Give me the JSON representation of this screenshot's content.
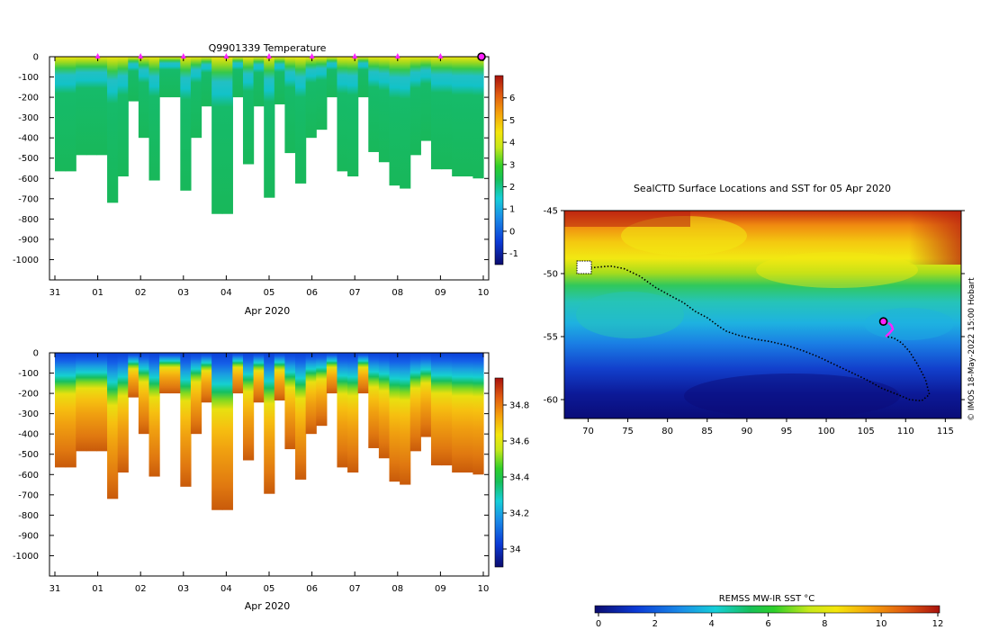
{
  "chart_data": [
    {
      "type": "heatmap",
      "title": "Q9901339  Temperature",
      "xlabel": "Apr 2020",
      "ylabel": "",
      "x_ticks": [
        "31",
        "01",
        "02",
        "03",
        "04",
        "05",
        "06",
        "07",
        "08",
        "09",
        "10"
      ],
      "x_range_days": [
        0,
        10
      ],
      "y_ticks": [
        "0",
        "-100",
        "-200",
        "-300",
        "-400",
        "-500",
        "-600",
        "-700",
        "-800",
        "-900",
        "-1000"
      ],
      "ylim": [
        -1100,
        0
      ],
      "colorbar": {
        "range": [
          -1.5,
          7
        ],
        "ticks": [
          "-1",
          "0",
          "1",
          "2",
          "3",
          "4",
          "5",
          "6"
        ]
      },
      "profile_depths_m": [
        565,
        565,
        485,
        485,
        485,
        720,
        590,
        220,
        400,
        610,
        200,
        200,
        660,
        400,
        245,
        775,
        775,
        200,
        530,
        245,
        695,
        235,
        475,
        625,
        400,
        360,
        200,
        565,
        590,
        200,
        470,
        520,
        635,
        650,
        485,
        415,
        555,
        555,
        590,
        590,
        600
      ],
      "surface_markers_day": [
        1,
        2,
        3,
        4,
        5,
        6,
        7,
        8,
        9
      ],
      "last_position_day": 10
    },
    {
      "type": "heatmap",
      "title": "",
      "xlabel": "Apr 2020",
      "ylabel": "",
      "x_ticks": [
        "31",
        "01",
        "02",
        "03",
        "04",
        "05",
        "06",
        "07",
        "08",
        "09",
        "10"
      ],
      "x_range_days": [
        0,
        10
      ],
      "y_ticks": [
        "0",
        "-100",
        "-200",
        "-300",
        "-400",
        "-500",
        "-600",
        "-700",
        "-800",
        "-900",
        "-1000"
      ],
      "ylim": [
        -1100,
        0
      ],
      "colorbar": {
        "range": [
          33.9,
          34.95
        ],
        "ticks": [
          "34",
          "34.2",
          "34.4",
          "34.6",
          "34.8"
        ]
      }
    },
    {
      "type": "scatter",
      "title": "SealCTD Surface Locations and SST for 05 Apr 2020",
      "xlabel": "",
      "ylabel": "",
      "x_ticks": [
        "70",
        "75",
        "80",
        "85",
        "90",
        "95",
        "100",
        "105",
        "110",
        "115"
      ],
      "xlim": [
        67,
        117
      ],
      "y_ticks": [
        "-45",
        "-50",
        "-55",
        "-60"
      ],
      "ylim": [
        -61.5,
        -45
      ],
      "colorbar": {
        "label": "REMSS MW-IR SST °C",
        "range": [
          0,
          12
        ],
        "ticks": [
          "0",
          "2",
          "4",
          "6",
          "8",
          "10",
          "12"
        ]
      },
      "track_lonlat": [
        [
          69.5,
          -49.6
        ],
        [
          71,
          -49.5
        ],
        [
          72.8,
          -49.4
        ],
        [
          74.5,
          -49.6
        ],
        [
          76.5,
          -50.2
        ],
        [
          78.5,
          -51.1
        ],
        [
          80.5,
          -51.8
        ],
        [
          82,
          -52.3
        ],
        [
          83.5,
          -53
        ],
        [
          85,
          -53.5
        ],
        [
          86.5,
          -54.2
        ],
        [
          87.5,
          -54.6
        ],
        [
          89,
          -54.9
        ],
        [
          91,
          -55.2
        ],
        [
          93,
          -55.4
        ],
        [
          95,
          -55.7
        ],
        [
          97,
          -56.1
        ],
        [
          99,
          -56.6
        ],
        [
          101,
          -57.2
        ],
        [
          103,
          -57.8
        ],
        [
          105,
          -58.4
        ],
        [
          107,
          -59.1
        ],
        [
          109,
          -59.6
        ],
        [
          110.5,
          -60
        ],
        [
          112,
          -60.1
        ],
        [
          113,
          -59.6
        ],
        [
          112.5,
          -58.4
        ],
        [
          111.5,
          -57.2
        ],
        [
          110.5,
          -56.2
        ],
        [
          109.5,
          -55.5
        ],
        [
          108.5,
          -55.1
        ],
        [
          107.5,
          -55
        ]
      ],
      "recent_track_lonlat": [
        [
          107.5,
          -55
        ],
        [
          108,
          -54.7
        ],
        [
          108.4,
          -54.4
        ],
        [
          108.2,
          -54.1
        ],
        [
          107.8,
          -53.9
        ]
      ],
      "current_position_lonlat": [
        107.2,
        -53.8
      ],
      "deployment_lonlat": [
        69.5,
        -49.5
      ],
      "side_note": "© IMOS 18-May-2022 15:00 Hobart"
    }
  ]
}
